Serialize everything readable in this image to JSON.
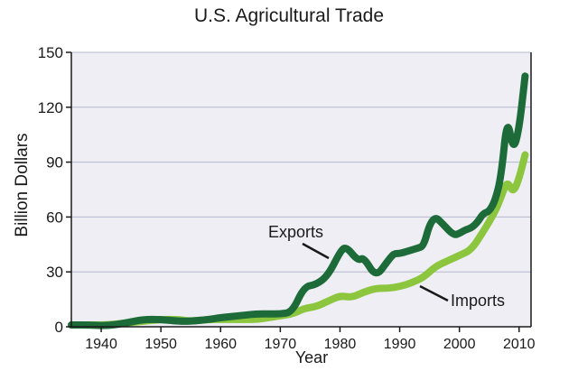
{
  "chart_data": {
    "type": "line",
    "title": "U.S. Agricultural Trade",
    "xlabel": "Year",
    "ylabel": "Billion Dollars",
    "xlim": [
      1935,
      2012
    ],
    "ylim": [
      0,
      150
    ],
    "xticks": [
      1940,
      1950,
      1960,
      1970,
      1980,
      1990,
      2000,
      2010
    ],
    "yticks": [
      0,
      30,
      60,
      90,
      120,
      150
    ],
    "grid": true,
    "series": [
      {
        "name": "Exports",
        "color": "#1e6b3a",
        "x": [
          1935,
          1938,
          1941,
          1944,
          1947,
          1950,
          1953,
          1955,
          1958,
          1960,
          1963,
          1966,
          1968,
          1970,
          1972,
          1974,
          1976,
          1978,
          1980,
          1981,
          1983,
          1984,
          1986,
          1988,
          1989,
          1990,
          1992,
          1993,
          1994,
          1995,
          1996,
          1997,
          1999,
          2000,
          2001,
          2002,
          2003,
          2004,
          2005,
          2006,
          2007,
          2008,
          2009,
          2010,
          2011
        ],
        "values": [
          1,
          1,
          0.5,
          2,
          4,
          4,
          3,
          3,
          4,
          5,
          6,
          7,
          7,
          7,
          8,
          22,
          23,
          28,
          41,
          44,
          36,
          38,
          27,
          36,
          40,
          40,
          42,
          43,
          44,
          56,
          60,
          57,
          50,
          51,
          53,
          54,
          57,
          62,
          63,
          69,
          82,
          115,
          96,
          108,
          137
        ]
      },
      {
        "name": "Imports",
        "color": "#8cc63f",
        "x": [
          1935,
          1938,
          1941,
          1944,
          1947,
          1950,
          1953,
          1955,
          1958,
          1960,
          1963,
          1966,
          1968,
          1970,
          1972,
          1974,
          1976,
          1978,
          1980,
          1982,
          1984,
          1986,
          1988,
          1990,
          1992,
          1994,
          1996,
          1998,
          2000,
          2002,
          2004,
          2006,
          2007,
          2008,
          2009,
          2010,
          2011
        ],
        "values": [
          1,
          1,
          1,
          2,
          3,
          4,
          4,
          3,
          4,
          4,
          4,
          4,
          5,
          6,
          7,
          10,
          11,
          14,
          17,
          16,
          19,
          21,
          21,
          22,
          24,
          27,
          33,
          36,
          39,
          42,
          52,
          63,
          71,
          80,
          73,
          81,
          94
        ]
      }
    ],
    "annotations": [
      {
        "text": "Exports",
        "series": "Exports"
      },
      {
        "text": "Imports",
        "series": "Imports"
      }
    ]
  }
}
